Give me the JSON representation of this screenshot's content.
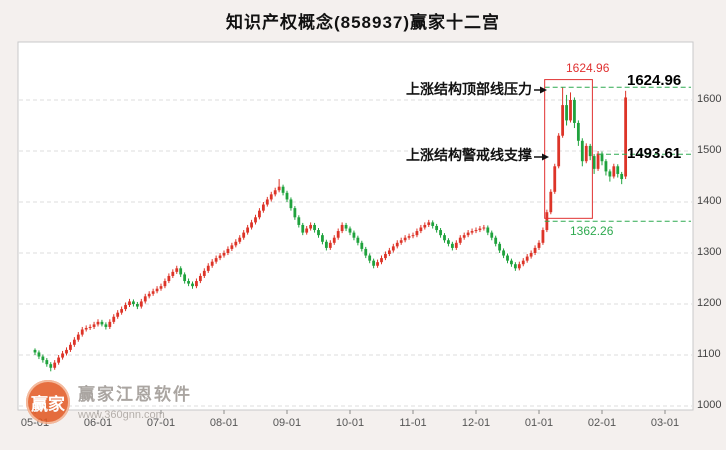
{
  "page": {
    "title": "知识产权概念(858937)赢家十二宫",
    "bg": "#f4f0ee"
  },
  "watermark": {
    "logo_text": "赢家",
    "brand": "赢家江恩软件",
    "site": "www.360gnn.com"
  },
  "chart_data": {
    "type": "candlestick",
    "title": "知识产权概念(858937)赢家十二宫",
    "x_tick_labels": [
      "05-01",
      "06-01",
      "07-01",
      "08-01",
      "09-01",
      "10-01",
      "11-01",
      "12-01",
      "01-01",
      "02-01",
      "03-01"
    ],
    "y_tick_labels": [
      "1600",
      "1500",
      "1400",
      "1300",
      "1200",
      "1100",
      "1000"
    ],
    "ylim": [
      992,
      1714
    ],
    "candles_per_month": 16,
    "grid": "horizontal-dashed",
    "legend_position": "none",
    "colors": {
      "up": "#dd3428",
      "down": "#1fa23d",
      "annotation_green": "#2faa50",
      "annotation_red": "#e03131"
    },
    "annotations": {
      "resistance_label": "上涨结构顶部线压力",
      "support_label": "上涨结构警戒线支撑",
      "peak_value_label": "1624.96",
      "resistance_value": 1624.96,
      "resistance_value_label": "1624.96",
      "support_value": 1493.61,
      "support_value_label": "1493.61",
      "lower_value": 1362.26,
      "lower_value_label": "1362.26"
    },
    "highlight_box": {
      "from_index": 130,
      "to_index": 141,
      "top_price": 1640,
      "bottom_price": 1368
    },
    "candles": [
      [
        1110,
        1113,
        1100,
        1105
      ],
      [
        1105,
        1109,
        1092,
        1097
      ],
      [
        1097,
        1101,
        1085,
        1090
      ],
      [
        1090,
        1094,
        1077,
        1082
      ],
      [
        1082,
        1086,
        1068,
        1075
      ],
      [
        1075,
        1090,
        1071,
        1085
      ],
      [
        1085,
        1100,
        1081,
        1095
      ],
      [
        1095,
        1108,
        1091,
        1103
      ],
      [
        1103,
        1115,
        1099,
        1110
      ],
      [
        1110,
        1125,
        1106,
        1120
      ],
      [
        1120,
        1135,
        1116,
        1130
      ],
      [
        1130,
        1145,
        1126,
        1140
      ],
      [
        1140,
        1155,
        1136,
        1150
      ],
      [
        1150,
        1158,
        1146,
        1153
      ],
      [
        1153,
        1160,
        1149,
        1155
      ],
      [
        1155,
        1165,
        1151,
        1160
      ],
      [
        1160,
        1170,
        1156,
        1165
      ],
      [
        1165,
        1169,
        1156,
        1160
      ],
      [
        1160,
        1164,
        1150,
        1155
      ],
      [
        1155,
        1170,
        1151,
        1165
      ],
      [
        1165,
        1180,
        1161,
        1175
      ],
      [
        1175,
        1188,
        1171,
        1183
      ],
      [
        1183,
        1195,
        1179,
        1190
      ],
      [
        1190,
        1203,
        1186,
        1198
      ],
      [
        1198,
        1210,
        1194,
        1205
      ],
      [
        1205,
        1209,
        1195,
        1200
      ],
      [
        1200,
        1204,
        1190,
        1195
      ],
      [
        1195,
        1210,
        1191,
        1205
      ],
      [
        1205,
        1220,
        1201,
        1215
      ],
      [
        1215,
        1225,
        1211,
        1220
      ],
      [
        1220,
        1230,
        1216,
        1225
      ],
      [
        1225,
        1235,
        1221,
        1230
      ],
      [
        1230,
        1240,
        1226,
        1235
      ],
      [
        1235,
        1250,
        1231,
        1245
      ],
      [
        1245,
        1260,
        1241,
        1255
      ],
      [
        1255,
        1268,
        1251,
        1263
      ],
      [
        1263,
        1275,
        1259,
        1270
      ],
      [
        1270,
        1274,
        1253,
        1258
      ],
      [
        1258,
        1262,
        1240,
        1245
      ],
      [
        1245,
        1250,
        1235,
        1240
      ],
      [
        1240,
        1244,
        1230,
        1235
      ],
      [
        1235,
        1250,
        1231,
        1245
      ],
      [
        1245,
        1260,
        1241,
        1255
      ],
      [
        1255,
        1270,
        1251,
        1265
      ],
      [
        1265,
        1280,
        1261,
        1275
      ],
      [
        1275,
        1288,
        1271,
        1283
      ],
      [
        1283,
        1295,
        1279,
        1290
      ],
      [
        1290,
        1300,
        1286,
        1295
      ],
      [
        1295,
        1305,
        1291,
        1300
      ],
      [
        1300,
        1313,
        1296,
        1308
      ],
      [
        1308,
        1320,
        1304,
        1315
      ],
      [
        1315,
        1327,
        1311,
        1322
      ],
      [
        1322,
        1335,
        1318,
        1330
      ],
      [
        1330,
        1345,
        1326,
        1340
      ],
      [
        1340,
        1355,
        1336,
        1350
      ],
      [
        1350,
        1365,
        1346,
        1360
      ],
      [
        1360,
        1375,
        1356,
        1370
      ],
      [
        1370,
        1388,
        1366,
        1383
      ],
      [
        1383,
        1400,
        1379,
        1395
      ],
      [
        1395,
        1410,
        1391,
        1405
      ],
      [
        1405,
        1420,
        1401,
        1415
      ],
      [
        1415,
        1428,
        1411,
        1423
      ],
      [
        1423,
        1445,
        1419,
        1430
      ],
      [
        1430,
        1434,
        1413,
        1418
      ],
      [
        1418,
        1422,
        1400,
        1405
      ],
      [
        1405,
        1409,
        1383,
        1388
      ],
      [
        1388,
        1392,
        1365,
        1370
      ],
      [
        1370,
        1374,
        1350,
        1355
      ],
      [
        1355,
        1359,
        1335,
        1340
      ],
      [
        1340,
        1353,
        1336,
        1348
      ],
      [
        1348,
        1360,
        1344,
        1355
      ],
      [
        1355,
        1359,
        1340,
        1345
      ],
      [
        1345,
        1349,
        1330,
        1335
      ],
      [
        1335,
        1339,
        1317,
        1322
      ],
      [
        1322,
        1326,
        1305,
        1310
      ],
      [
        1310,
        1325,
        1306,
        1320
      ],
      [
        1320,
        1335,
        1316,
        1330
      ],
      [
        1330,
        1348,
        1326,
        1343
      ],
      [
        1343,
        1360,
        1339,
        1355
      ],
      [
        1355,
        1359,
        1343,
        1348
      ],
      [
        1348,
        1352,
        1335,
        1340
      ],
      [
        1340,
        1344,
        1325,
        1330
      ],
      [
        1330,
        1334,
        1315,
        1320
      ],
      [
        1320,
        1324,
        1303,
        1308
      ],
      [
        1308,
        1312,
        1290,
        1295
      ],
      [
        1295,
        1299,
        1280,
        1285
      ],
      [
        1285,
        1289,
        1270,
        1275
      ],
      [
        1275,
        1287,
        1271,
        1282
      ],
      [
        1282,
        1295,
        1278,
        1290
      ],
      [
        1290,
        1303,
        1286,
        1298
      ],
      [
        1298,
        1310,
        1294,
        1305
      ],
      [
        1305,
        1318,
        1301,
        1313
      ],
      [
        1313,
        1325,
        1309,
        1320
      ],
      [
        1320,
        1330,
        1316,
        1325
      ],
      [
        1325,
        1335,
        1321,
        1330
      ],
      [
        1330,
        1338,
        1326,
        1333
      ],
      [
        1333,
        1340,
        1329,
        1335
      ],
      [
        1335,
        1348,
        1331,
        1343
      ],
      [
        1343,
        1355,
        1339,
        1350
      ],
      [
        1350,
        1360,
        1346,
        1355
      ],
      [
        1355,
        1365,
        1351,
        1360
      ],
      [
        1360,
        1364,
        1348,
        1353
      ],
      [
        1353,
        1357,
        1340,
        1345
      ],
      [
        1345,
        1349,
        1330,
        1335
      ],
      [
        1335,
        1339,
        1320,
        1325
      ],
      [
        1325,
        1329,
        1313,
        1318
      ],
      [
        1318,
        1322,
        1305,
        1310
      ],
      [
        1310,
        1325,
        1306,
        1320
      ],
      [
        1320,
        1335,
        1316,
        1330
      ],
      [
        1330,
        1340,
        1326,
        1335
      ],
      [
        1335,
        1345,
        1331,
        1340
      ],
      [
        1340,
        1348,
        1336,
        1343
      ],
      [
        1343,
        1350,
        1339,
        1345
      ],
      [
        1345,
        1353,
        1341,
        1348
      ],
      [
        1348,
        1355,
        1344,
        1350
      ],
      [
        1350,
        1354,
        1335,
        1340
      ],
      [
        1340,
        1344,
        1325,
        1330
      ],
      [
        1330,
        1334,
        1313,
        1318
      ],
      [
        1318,
        1322,
        1300,
        1305
      ],
      [
        1305,
        1309,
        1290,
        1295
      ],
      [
        1295,
        1299,
        1280,
        1285
      ],
      [
        1285,
        1289,
        1273,
        1278
      ],
      [
        1278,
        1282,
        1265,
        1270
      ],
      [
        1270,
        1283,
        1266,
        1278
      ],
      [
        1278,
        1290,
        1274,
        1285
      ],
      [
        1285,
        1298,
        1281,
        1293
      ],
      [
        1293,
        1305,
        1289,
        1300
      ],
      [
        1300,
        1315,
        1296,
        1310
      ],
      [
        1310,
        1325,
        1306,
        1320
      ],
      [
        1320,
        1350,
        1316,
        1345
      ],
      [
        1345,
        1385,
        1341,
        1380
      ],
      [
        1380,
        1425,
        1376,
        1420
      ],
      [
        1420,
        1475,
        1416,
        1470
      ],
      [
        1470,
        1535,
        1466,
        1530
      ],
      [
        1530,
        1624.96,
        1526,
        1590
      ],
      [
        1590,
        1610,
        1550,
        1560
      ],
      [
        1560,
        1615,
        1556,
        1600
      ],
      [
        1600,
        1605,
        1545,
        1555
      ],
      [
        1555,
        1560,
        1510,
        1520
      ],
      [
        1520,
        1525,
        1470,
        1480
      ],
      [
        1480,
        1515,
        1476,
        1510
      ],
      [
        1510,
        1514,
        1482,
        1490
      ],
      [
        1490,
        1494,
        1455,
        1465
      ],
      [
        1465,
        1500,
        1461,
        1495
      ],
      [
        1495,
        1499,
        1472,
        1480
      ],
      [
        1480,
        1484,
        1452,
        1460
      ],
      [
        1460,
        1464,
        1440,
        1450
      ],
      [
        1450,
        1475,
        1446,
        1470
      ],
      [
        1470,
        1474,
        1448,
        1455
      ],
      [
        1455,
        1459,
        1435,
        1445
      ],
      [
        1450,
        1618,
        1445,
        1605
      ]
    ]
  }
}
